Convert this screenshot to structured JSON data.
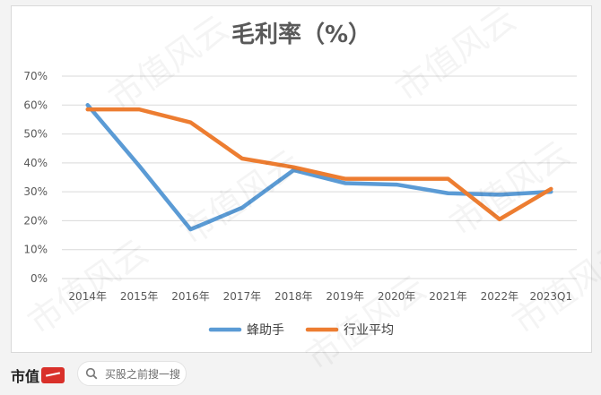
{
  "chart_data": {
    "type": "line",
    "title": "毛利率（%）",
    "categories": [
      "2014年",
      "2015年",
      "2016年",
      "2017年",
      "2018年",
      "2019年",
      "2020年",
      "2021年",
      "2022年",
      "2023Q1"
    ],
    "y_ticks": [
      "0%",
      "10%",
      "20%",
      "30%",
      "40%",
      "50%",
      "60%",
      "70%"
    ],
    "ylim": [
      0,
      70
    ],
    "grid": true,
    "legend_position": "bottom",
    "series": [
      {
        "name": "蜂助手",
        "color": "#5b9bd5",
        "values": [
          60,
          39,
          17,
          24.5,
          37.5,
          33,
          32.5,
          29.5,
          29,
          30
        ]
      },
      {
        "name": "行业平均",
        "color": "#ed7d31",
        "values": [
          58.5,
          58.5,
          54,
          41.5,
          38.5,
          34.5,
          34.5,
          34.5,
          20.5,
          31
        ]
      }
    ]
  },
  "footer": {
    "brand": "市值",
    "search_placeholder": "买股之前搜一搜"
  },
  "watermark_text": "市值风云",
  "colors": {
    "accent": "#d9302a"
  }
}
